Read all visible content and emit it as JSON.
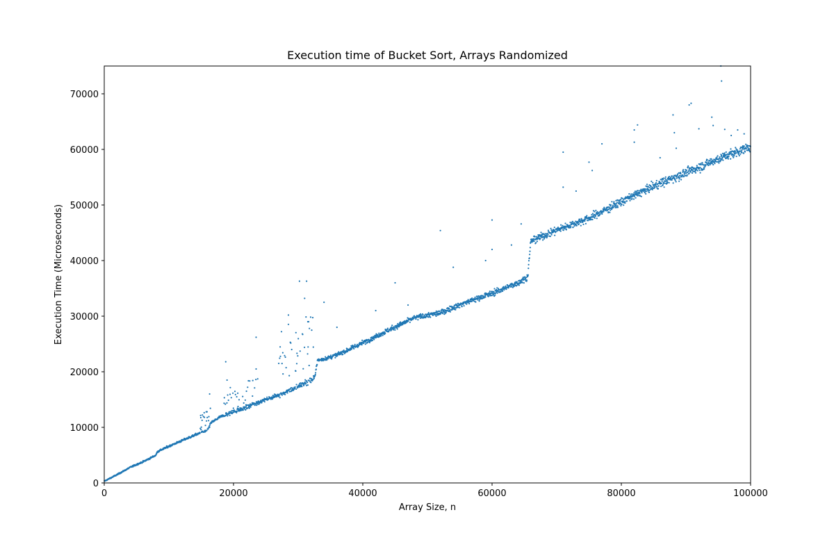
{
  "chart_data": {
    "type": "scatter",
    "title": "Execution time of Bucket Sort, Arrays Randomized",
    "xlabel": "Array Size, n",
    "ylabel": "Execution Time (Microseconds)",
    "xlim": [
      0,
      100000
    ],
    "ylim": [
      0,
      75000
    ],
    "xticks": [
      0,
      20000,
      40000,
      60000,
      80000,
      100000
    ],
    "yticks": [
      0,
      10000,
      20000,
      30000,
      40000,
      50000,
      60000,
      70000
    ],
    "grid": false,
    "marker_color": "#1f77b4",
    "x": [
      0,
      2000,
      4000,
      6000,
      8000,
      8200,
      10000,
      12000,
      14000,
      16000,
      16500,
      18000,
      20000,
      22000,
      24000,
      26000,
      28000,
      30000,
      32500,
      33000,
      36000,
      40000,
      44000,
      48000,
      52000,
      56000,
      60000,
      64000,
      65500,
      66000,
      70000,
      75000,
      80000,
      85000,
      90000,
      95000,
      100000
    ],
    "y": [
      300,
      1500,
      2800,
      3800,
      5000,
      5600,
      6600,
      7600,
      8600,
      9500,
      10800,
      11900,
      12800,
      13600,
      14600,
      15400,
      16300,
      17300,
      18800,
      22000,
      23000,
      25200,
      27500,
      29700,
      30600,
      32500,
      34100,
      36000,
      37000,
      43500,
      45500,
      47600,
      50600,
      53400,
      55800,
      58300,
      60500
    ],
    "outliers": [
      {
        "x": 15500,
        "y": 11800
      },
      {
        "x": 16300,
        "y": 16000
      },
      {
        "x": 18800,
        "y": 21800
      },
      {
        "x": 19000,
        "y": 18500
      },
      {
        "x": 20500,
        "y": 15500
      },
      {
        "x": 22000,
        "y": 16500
      },
      {
        "x": 23500,
        "y": 26200
      },
      {
        "x": 23500,
        "y": 20500
      },
      {
        "x": 27000,
        "y": 21500
      },
      {
        "x": 28500,
        "y": 30200
      },
      {
        "x": 29000,
        "y": 24000
      },
      {
        "x": 30200,
        "y": 36300
      },
      {
        "x": 31000,
        "y": 33200
      },
      {
        "x": 31300,
        "y": 36300
      },
      {
        "x": 31500,
        "y": 29000
      },
      {
        "x": 34000,
        "y": 32500
      },
      {
        "x": 36000,
        "y": 28000
      },
      {
        "x": 42000,
        "y": 31000
      },
      {
        "x": 45000,
        "y": 36000
      },
      {
        "x": 47000,
        "y": 32000
      },
      {
        "x": 52000,
        "y": 45400
      },
      {
        "x": 54000,
        "y": 38800
      },
      {
        "x": 59000,
        "y": 40000
      },
      {
        "x": 60000,
        "y": 47300
      },
      {
        "x": 60000,
        "y": 42000
      },
      {
        "x": 63000,
        "y": 42800
      },
      {
        "x": 64500,
        "y": 46600
      },
      {
        "x": 71000,
        "y": 59500
      },
      {
        "x": 71000,
        "y": 53200
      },
      {
        "x": 73000,
        "y": 52500
      },
      {
        "x": 75000,
        "y": 57700
      },
      {
        "x": 75500,
        "y": 56200
      },
      {
        "x": 77000,
        "y": 61000
      },
      {
        "x": 82000,
        "y": 63500
      },
      {
        "x": 82500,
        "y": 64400
      },
      {
        "x": 82000,
        "y": 61300
      },
      {
        "x": 86000,
        "y": 58500
      },
      {
        "x": 88000,
        "y": 66200
      },
      {
        "x": 88200,
        "y": 63000
      },
      {
        "x": 88500,
        "y": 60200
      },
      {
        "x": 90500,
        "y": 68000
      },
      {
        "x": 90800,
        "y": 68300
      },
      {
        "x": 92000,
        "y": 63700
      },
      {
        "x": 94000,
        "y": 65800
      },
      {
        "x": 94200,
        "y": 64300
      },
      {
        "x": 95500,
        "y": 72300
      },
      {
        "x": 96000,
        "y": 63600
      },
      {
        "x": 97000,
        "y": 62500
      },
      {
        "x": 98000,
        "y": 63500
      },
      {
        "x": 99000,
        "y": 62800
      },
      {
        "x": 95400,
        "y": 75000
      }
    ]
  }
}
